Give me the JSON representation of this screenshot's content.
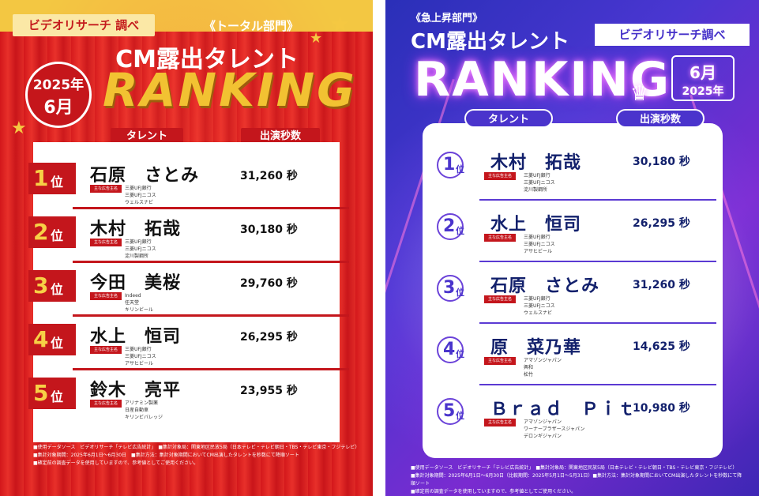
{
  "left": {
    "brand": "ビデオリサーチ 調べ",
    "category": "《トータル部門》",
    "title": "CM露出タレント",
    "badge_year": "2025年",
    "badge_month": "6月",
    "ranking_word": "RANKING",
    "col_talent": "タレント",
    "col_seconds": "出演秒数",
    "tag_label": "主な広告主名",
    "rank_suffix": "位",
    "rows": [
      {
        "rank": "1",
        "name": "石原　さとみ",
        "seconds": "31,260 秒",
        "sponsors": [
          "三菱UFJ銀行",
          "三菱UFJニコス",
          "ウェルスナビ"
        ]
      },
      {
        "rank": "2",
        "name": "木村　拓哉",
        "seconds": "30,180 秒",
        "sponsors": [
          "三菱UFJ銀行",
          "三菱UFJニコス",
          "淀川製鋼所"
        ]
      },
      {
        "rank": "3",
        "name": "今田　美桜",
        "seconds": "29,760 秒",
        "sponsors": [
          "Indeed",
          "任天堂",
          "キリンビール"
        ]
      },
      {
        "rank": "4",
        "name": "水上　恒司",
        "seconds": "26,295 秒",
        "sponsors": [
          "三菱UFJ銀行",
          "三菱UFJニコス",
          "アサヒビール"
        ]
      },
      {
        "rank": "5",
        "name": "鈴木　亮平",
        "seconds": "23,955 秒",
        "sponsors": [
          "アリナミン製薬",
          "日産自動車",
          "キリンビバレッジ"
        ]
      }
    ],
    "footer": [
      "■使用データソース　ビデオリサーチ「テレビ広告統計」　■集計対象局：関東地区民放5局（日本テレビ・テレビ朝日・TBS・テレビ東京・フジテレビ）",
      "■集計対象期間：2025年6月1日～6月30日　■集計方法：集計対象期間においてCM出演したタレントを秒数にて降順ソート",
      "■確定前の調査データを使用していますので、参考値としてご使用ください。"
    ],
    "colors": {
      "red": "#c4161c",
      "gold": "#f2c232",
      "yellow": "#f7d046"
    }
  },
  "right": {
    "category": "《急上昇部門》",
    "title": "CM露出タレント",
    "brand": "ビデオリサーチ調べ",
    "ranking_word": "RANKING",
    "crown_icon": "crown-icon",
    "date_month": "6月",
    "date_year": "2025年",
    "col_talent": "タレント",
    "col_seconds": "出演秒数",
    "tag_label": "主な広告主名",
    "rank_suffix": "位",
    "rows": [
      {
        "rank": "1",
        "name": "木村　拓哉",
        "seconds": "30,180 秒",
        "sponsors": [
          "三菱UFJ銀行",
          "三菱UFJニコス",
          "淀川製鋼所"
        ]
      },
      {
        "rank": "2",
        "name": "水上　恒司",
        "seconds": "26,295 秒",
        "sponsors": [
          "三菱UFJ銀行",
          "三菱UFJニコス",
          "アサヒビール"
        ]
      },
      {
        "rank": "3",
        "name": "石原　さとみ",
        "seconds": "31,260 秒",
        "sponsors": [
          "三菱UFJ銀行",
          "三菱UFJニコス",
          "ウェルスナビ"
        ]
      },
      {
        "rank": "4",
        "name": "原　菜乃華",
        "seconds": "14,625 秒",
        "sponsors": [
          "アマゾンジャパン",
          "興和",
          "松竹"
        ]
      },
      {
        "rank": "5",
        "name": "Ｂｒａｄ　Ｐｉｔ",
        "seconds": "10,980 秒",
        "sponsors": [
          "アマゾンジャパン",
          "ワーナーブラザースジャパン",
          "デロンギジャパン"
        ]
      }
    ],
    "footer": [
      "■使用データソース　ビデオリサーチ「テレビ広告統計」　■集計対象局：関東地区民放5局（日本テレビ・テレビ朝日・TBS・テレビ東京・フジテレビ）",
      "■集計対象期間：2025年6月1日～6月30日（比較期間：2025年5月1日～5月31日）■集計方法：集計対象期間においてCM出演したタレントを秒数にて降順ソート",
      "■確定前の調査データを使用していますので、参考値としてご使用ください。"
    ],
    "colors": {
      "purple": "#4a34cc",
      "navy": "#12206c",
      "glow": "#f68cff"
    }
  }
}
